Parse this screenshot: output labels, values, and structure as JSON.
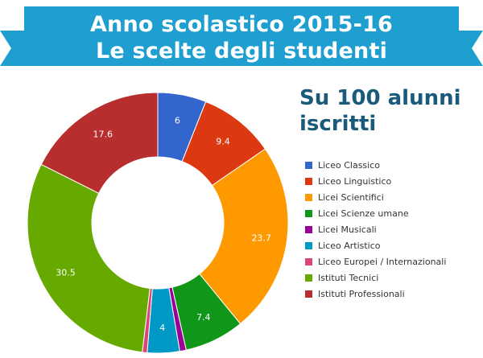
{
  "banner": {
    "line1": "Anno scolastico 2015-16",
    "line2": "Le scelte degli studenti"
  },
  "subtitle": {
    "line1": "Su 100 alunni",
    "line2": "iscritti"
  },
  "colors": {
    "banner_main": "#1e9fcf",
    "banner_fold": "#157a9f",
    "subtitle": "#1a5a7a"
  },
  "chart_data": {
    "type": "pie",
    "style": "donut",
    "title": "",
    "legend_position": "right",
    "categories": [
      "Liceo Classico",
      "Liceo Linguistico",
      "Licei Scientifici",
      "Licei Scienze umane",
      "Licei Musicali",
      "Liceo Artistico",
      "Liceo Europei / Internazionali",
      "Istituti Tecnici",
      "Istituti Professionali"
    ],
    "values": [
      6,
      9.4,
      23.7,
      7.4,
      0.8,
      4,
      0.6,
      30.5,
      17.6
    ],
    "data_labels": [
      "6",
      "9.4",
      "23.7",
      "7.4",
      "",
      "4",
      "",
      "30.5",
      "17.6"
    ],
    "colors": [
      "#3366cc",
      "#dc3912",
      "#ff9900",
      "#109618",
      "#990099",
      "#0099c6",
      "#dd4477",
      "#66aa00",
      "#b82e2e"
    ]
  }
}
